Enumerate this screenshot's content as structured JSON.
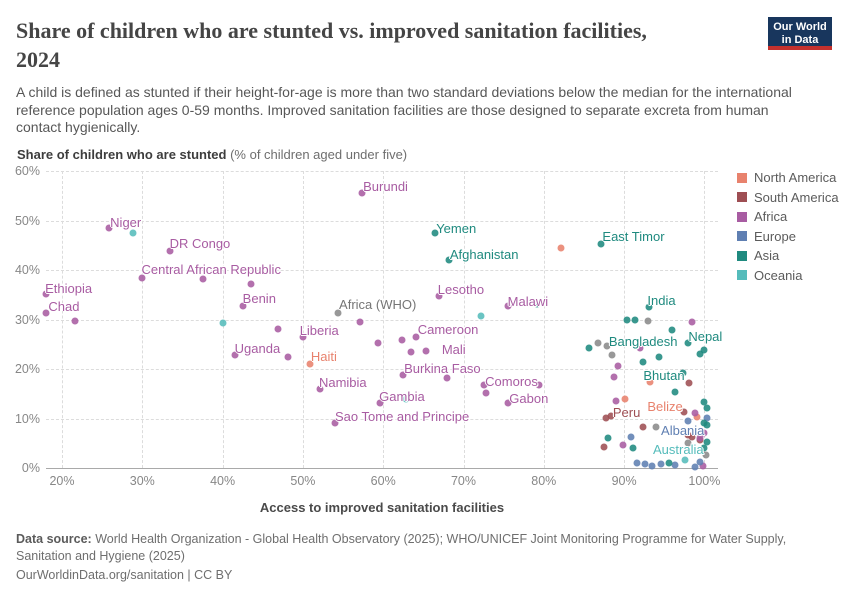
{
  "header": {
    "title_line1": "Share of children who are stunted vs. improved sanitation facilities,",
    "title_line2": "2024",
    "subtitle": "A child is defined as stunted if their height-for-age is more than two standard deviations below the median for the international reference population ages 0-59 months. Improved sanitation facilities are those designed to separate excreta from human contact hygienically.",
    "logo": {
      "line1": "Our World",
      "line2": "in Data"
    }
  },
  "chart": {
    "y_axis_title_bold": "Share of children who are stunted",
    "y_axis_title_note": " (% of children aged under five)",
    "x_axis_title": "Access to improved sanitation facilities",
    "legend": [
      {
        "label": "North America",
        "color": "#E8826D"
      },
      {
        "label": "South America",
        "color": "#9E4E53"
      },
      {
        "label": "Africa",
        "color": "#A85CA2"
      },
      {
        "label": "Europe",
        "color": "#5F7FB2"
      },
      {
        "label": "Asia",
        "color": "#1F8A7F"
      },
      {
        "label": "Oceania",
        "color": "#55BCBB"
      }
    ]
  },
  "chart_data": {
    "type": "scatter",
    "title": "Share of children who are stunted vs. improved sanitation facilities, 2024",
    "xlabel": "Access to improved sanitation facilities",
    "ylabel": "Share of children who are stunted (% of children aged under five)",
    "xlim": [
      18,
      101
    ],
    "ylim": [
      0,
      60
    ],
    "grid": true,
    "legend_position": "top-right",
    "x_ticks": [
      {
        "v": 20,
        "t": "20%"
      },
      {
        "v": 30,
        "t": "30%"
      },
      {
        "v": 40,
        "t": "40%"
      },
      {
        "v": 50,
        "t": "50%"
      },
      {
        "v": 60,
        "t": "60%"
      },
      {
        "v": 70,
        "t": "70%"
      },
      {
        "v": 80,
        "t": "80%"
      },
      {
        "v": 90,
        "t": "90%"
      },
      {
        "v": 100,
        "t": "100%"
      }
    ],
    "y_ticks": [
      {
        "v": 0,
        "t": "0%"
      },
      {
        "v": 10,
        "t": "10%"
      },
      {
        "v": 20,
        "t": "20%"
      },
      {
        "v": 30,
        "t": "30%"
      },
      {
        "v": 40,
        "t": "40%"
      },
      {
        "v": 50,
        "t": "50%"
      },
      {
        "v": 60,
        "t": "60%"
      }
    ],
    "series": [
      {
        "name": "North America",
        "color": "#E8826D",
        "points": [
          {
            "x": 50.9,
            "y": 21.0,
            "label": "Haiti"
          },
          {
            "x": 82.2,
            "y": 44.4
          },
          {
            "x": 90.1,
            "y": 13.9,
            "label": "Belize"
          },
          {
            "x": 93.2,
            "y": 17.4
          },
          {
            "x": 99.1,
            "y": 10.3
          }
        ]
      },
      {
        "name": "South America",
        "color": "#9E4E53",
        "points": [
          {
            "x": 88.4,
            "y": 10.5,
            "label": "Peru"
          },
          {
            "x": 87.7,
            "y": 10.1
          },
          {
            "x": 92.4,
            "y": 8.3
          },
          {
            "x": 87.5,
            "y": 4.2
          },
          {
            "x": 98.0,
            "y": 6.7
          },
          {
            "x": 98.5,
            "y": 6.3
          },
          {
            "x": 99.4,
            "y": 5.7
          },
          {
            "x": 97.5,
            "y": 11.3
          },
          {
            "x": 98.1,
            "y": 17.2
          }
        ]
      },
      {
        "name": "Africa",
        "color": "#A85CA2",
        "points": [
          {
            "x": 18.0,
            "y": 35.2,
            "label": "Ethiopia"
          },
          {
            "x": 18.0,
            "y": 31.3,
            "label": "Chad"
          },
          {
            "x": 21.6,
            "y": 29.7
          },
          {
            "x": 25.8,
            "y": 48.5,
            "label": "Niger"
          },
          {
            "x": 33.4,
            "y": 43.8,
            "label": "DR Congo"
          },
          {
            "x": 30.0,
            "y": 38.4,
            "label": "Central African Republic"
          },
          {
            "x": 37.5,
            "y": 38.2
          },
          {
            "x": 43.5,
            "y": 37.2
          },
          {
            "x": 42.5,
            "y": 32.7,
            "label": "Benin"
          },
          {
            "x": 46.9,
            "y": 28.1
          },
          {
            "x": 50.0,
            "y": 26.5,
            "label": "Liberia"
          },
          {
            "x": 41.5,
            "y": 22.8,
            "label": "Uganda"
          },
          {
            "x": 48.1,
            "y": 22.4
          },
          {
            "x": 52.1,
            "y": 16.0,
            "label": "Namibia"
          },
          {
            "x": 54.0,
            "y": 9.1,
            "label": "Sao Tome and Principe"
          },
          {
            "x": 59.6,
            "y": 13.1,
            "label": "Gambia"
          },
          {
            "x": 57.3,
            "y": 55.5,
            "label": "Burundi"
          },
          {
            "x": 57.1,
            "y": 29.5
          },
          {
            "x": 59.4,
            "y": 25.3
          },
          {
            "x": 62.3,
            "y": 25.9
          },
          {
            "x": 64.1,
            "y": 26.5,
            "label": "Cameroon"
          },
          {
            "x": 63.5,
            "y": 23.4
          },
          {
            "x": 65.3,
            "y": 23.6,
            "label": "Mali"
          },
          {
            "x": 62.5,
            "y": 18.8,
            "label": "Burkina Faso"
          },
          {
            "x": 68.0,
            "y": 18.2
          },
          {
            "x": 66.9,
            "y": 34.7,
            "label": "Lesotho"
          },
          {
            "x": 75.6,
            "y": 32.7,
            "label": "Malawi"
          },
          {
            "x": 72.6,
            "y": 16.8
          },
          {
            "x": 72.8,
            "y": 15.2,
            "label": "Comoros"
          },
          {
            "x": 79.4,
            "y": 16.8
          },
          {
            "x": 75.6,
            "y": 13.1,
            "label": "Gabon"
          },
          {
            "x": 89.3,
            "y": 20.6
          },
          {
            "x": 88.8,
            "y": 18.4
          },
          {
            "x": 92.0,
            "y": 24.2
          },
          {
            "x": 89.0,
            "y": 13.5
          },
          {
            "x": 89.9,
            "y": 4.6
          },
          {
            "x": 98.5,
            "y": 29.5
          },
          {
            "x": 98.8,
            "y": 11.1
          },
          {
            "x": 99.5,
            "y": 6.1
          },
          {
            "x": 100.0,
            "y": 7.1
          },
          {
            "x": 99.8,
            "y": 0.4
          }
        ]
      },
      {
        "name": "Europe",
        "color": "#5F7FB2",
        "points": [
          {
            "x": 90.8,
            "y": 6.3,
            "label": "Albania"
          },
          {
            "x": 91.6,
            "y": 1.0
          },
          {
            "x": 92.6,
            "y": 0.8
          },
          {
            "x": 93.5,
            "y": 0.5
          },
          {
            "x": 94.6,
            "y": 0.8
          },
          {
            "x": 96.4,
            "y": 0.6
          },
          {
            "x": 98.8,
            "y": 0.3
          },
          {
            "x": 97.9,
            "y": 9.5
          },
          {
            "x": 100.3,
            "y": 10.1
          },
          {
            "x": 99.5,
            "y": 1.2
          }
        ]
      },
      {
        "name": "Asia",
        "color": "#1F8A7F",
        "points": [
          {
            "x": 66.5,
            "y": 47.5,
            "label": "Yemen"
          },
          {
            "x": 68.2,
            "y": 42.0,
            "label": "Afghanistan"
          },
          {
            "x": 87.1,
            "y": 45.3,
            "label": "East Timor"
          },
          {
            "x": 93.1,
            "y": 32.5,
            "label": "India"
          },
          {
            "x": 79.1,
            "y": 33.1
          },
          {
            "x": 90.4,
            "y": 29.9
          },
          {
            "x": 91.4,
            "y": 29.9
          },
          {
            "x": 96.0,
            "y": 27.9
          },
          {
            "x": 85.6,
            "y": 24.2,
            "label": "Bangladesh"
          },
          {
            "x": 97.9,
            "y": 25.3,
            "label": "Nepal"
          },
          {
            "x": 99.5,
            "y": 23.0
          },
          {
            "x": 99.9,
            "y": 23.8
          },
          {
            "x": 92.4,
            "y": 21.4
          },
          {
            "x": 94.4,
            "y": 22.4
          },
          {
            "x": 97.3,
            "y": 19.2,
            "label": "Bhutan"
          },
          {
            "x": 96.4,
            "y": 15.4
          },
          {
            "x": 88.0,
            "y": 6.1
          },
          {
            "x": 91.1,
            "y": 4.0
          },
          {
            "x": 95.6,
            "y": 1.0
          },
          {
            "x": 99.9,
            "y": 13.3
          },
          {
            "x": 100.3,
            "y": 12.1
          },
          {
            "x": 100.3,
            "y": 8.7
          },
          {
            "x": 99.9,
            "y": 9.1
          },
          {
            "x": 100.3,
            "y": 5.3
          },
          {
            "x": 100.0,
            "y": 4.0
          }
        ]
      },
      {
        "name": "Oceania",
        "color": "#55BCBB",
        "points": [
          {
            "x": 28.8,
            "y": 47.5
          },
          {
            "x": 40.0,
            "y": 29.3
          },
          {
            "x": 72.2,
            "y": 30.8
          },
          {
            "x": 62.9,
            "y": 14.0
          },
          {
            "x": 97.6,
            "y": 1.6,
            "label": "Australia"
          }
        ]
      },
      {
        "name": "other",
        "color": "#8A8A8A",
        "points": [
          {
            "x": 54.4,
            "y": 31.3,
            "label": "Africa (WHO)"
          },
          {
            "x": 86.8,
            "y": 25.3
          },
          {
            "x": 87.9,
            "y": 24.6
          },
          {
            "x": 88.5,
            "y": 22.8
          },
          {
            "x": 93.0,
            "y": 29.7
          },
          {
            "x": 94.0,
            "y": 8.3
          },
          {
            "x": 97.9,
            "y": 5.1
          },
          {
            "x": 100.2,
            "y": 2.6
          }
        ]
      }
    ],
    "annotations": [
      {
        "text": "Ethiopia",
        "x": 17.9,
        "y": 37.8,
        "color": "#A85CA2"
      },
      {
        "text": "Chad",
        "x": 18.3,
        "y": 34.1,
        "color": "#A85CA2"
      },
      {
        "text": "Niger",
        "x": 26.0,
        "y": 51.1,
        "color": "#A85CA2"
      },
      {
        "text": "DR Congo",
        "x": 33.4,
        "y": 46.9,
        "color": "#A85CA2"
      },
      {
        "text": "Central African Republic",
        "x": 29.9,
        "y": 41.6,
        "color": "#A85CA2"
      },
      {
        "text": "Benin",
        "x": 42.5,
        "y": 35.8,
        "color": "#A85CA2"
      },
      {
        "text": "Africa (WHO)",
        "x": 54.5,
        "y": 34.5,
        "color": "#757575"
      },
      {
        "text": "Burundi",
        "x": 57.5,
        "y": 58.4,
        "color": "#A85CA2"
      },
      {
        "text": "Yemen",
        "x": 66.6,
        "y": 49.9,
        "color": "#1F8A7F"
      },
      {
        "text": "Afghanistan",
        "x": 68.3,
        "y": 44.6,
        "color": "#1F8A7F"
      },
      {
        "text": "Lesotho",
        "x": 66.8,
        "y": 37.6,
        "color": "#A85CA2"
      },
      {
        "text": "Malawi",
        "x": 75.5,
        "y": 35.2,
        "color": "#A85CA2"
      },
      {
        "text": "Uganda",
        "x": 41.5,
        "y": 25.7,
        "color": "#A85CA2"
      },
      {
        "text": "Liberia",
        "x": 49.6,
        "y": 29.3,
        "color": "#A85CA2"
      },
      {
        "text": "Haiti",
        "x": 51.0,
        "y": 24.0,
        "color": "#E8826D"
      },
      {
        "text": "Cameroon",
        "x": 64.3,
        "y": 29.5,
        "color": "#A85CA2"
      },
      {
        "text": "Mali",
        "x": 67.3,
        "y": 25.5,
        "color": "#A85CA2"
      },
      {
        "text": "Burkina Faso",
        "x": 62.6,
        "y": 21.6,
        "color": "#A85CA2"
      },
      {
        "text": "Namibia",
        "x": 52.0,
        "y": 18.8,
        "color": "#A85CA2"
      },
      {
        "text": "Gambia",
        "x": 59.5,
        "y": 16.0,
        "color": "#A85CA2"
      },
      {
        "text": "Sao Tome and Principe",
        "x": 54.0,
        "y": 11.9,
        "color": "#A85CA2"
      },
      {
        "text": "Comoros",
        "x": 72.7,
        "y": 19.0,
        "color": "#A85CA2"
      },
      {
        "text": "Gabon",
        "x": 75.7,
        "y": 15.6,
        "color": "#A85CA2"
      },
      {
        "text": "East Timor",
        "x": 87.3,
        "y": 48.3,
        "color": "#1F8A7F"
      },
      {
        "text": "India",
        "x": 92.9,
        "y": 35.4,
        "color": "#1F8A7F"
      },
      {
        "text": "Bangladesh",
        "x": 88.1,
        "y": 27.1,
        "color": "#1F8A7F"
      },
      {
        "text": "Nepal",
        "x": 98.0,
        "y": 28.1,
        "color": "#1F8A7F"
      },
      {
        "text": "Bhutan",
        "x": 92.4,
        "y": 20.2,
        "color": "#1F8A7F"
      },
      {
        "text": "Peru",
        "x": 88.6,
        "y": 12.7,
        "color": "#9E4E53"
      },
      {
        "text": "Belize",
        "x": 92.9,
        "y": 13.9,
        "color": "#E8826D"
      },
      {
        "text": "Albania",
        "x": 94.6,
        "y": 9.1,
        "color": "#5F7FB2"
      },
      {
        "text": "Australia",
        "x": 93.6,
        "y": 5.3,
        "color": "#55BCBB"
      }
    ]
  },
  "footer": {
    "datasource_label": "Data source:",
    "datasource_text": " World Health Organization - Global Health Observatory (2025); WHO/UNICEF Joint Monitoring Programme for Water Supply, Sanitation and Hygiene (2025)",
    "license_text": "OurWorldinData.org/sanitation | CC BY"
  }
}
